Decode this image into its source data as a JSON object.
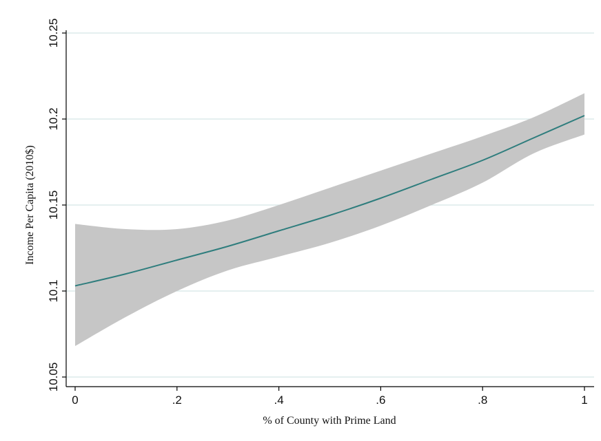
{
  "chart_data": {
    "type": "line",
    "xlabel": "% of County with Prime Land",
    "ylabel": "Income Per Capita (2010$)",
    "xlim": [
      0,
      1
    ],
    "ylim": [
      10.05,
      10.25
    ],
    "x_ticks": [
      {
        "value": 0,
        "label": "0"
      },
      {
        "value": 0.2,
        "label": ".2"
      },
      {
        "value": 0.4,
        "label": ".4"
      },
      {
        "value": 0.6,
        "label": ".6"
      },
      {
        "value": 0.8,
        "label": ".8"
      },
      {
        "value": 1,
        "label": "1"
      }
    ],
    "y_ticks": [
      {
        "value": 10.05,
        "label": "10.05"
      },
      {
        "value": 10.1,
        "label": "10.1"
      },
      {
        "value": 10.15,
        "label": "10.15"
      },
      {
        "value": 10.2,
        "label": "10.2"
      },
      {
        "value": 10.25,
        "label": "10.25"
      }
    ],
    "grid": "horizontal",
    "series": [
      {
        "kind": "fit",
        "color": "#2e7d7d",
        "x": [
          0,
          0.1,
          0.2,
          0.3,
          0.4,
          0.5,
          0.6,
          0.7,
          0.8,
          0.9,
          1.0
        ],
        "y": [
          10.103,
          10.11,
          10.118,
          10.126,
          10.135,
          10.144,
          10.154,
          10.165,
          10.176,
          10.189,
          10.202
        ]
      },
      {
        "kind": "confidence-band",
        "color": "#c6c6c6",
        "x": [
          0,
          0.1,
          0.2,
          0.3,
          0.4,
          0.5,
          0.6,
          0.7,
          0.8,
          0.9,
          1.0
        ],
        "upper": [
          10.139,
          10.136,
          10.136,
          10.141,
          10.15,
          10.16,
          10.17,
          10.18,
          10.19,
          10.201,
          10.215
        ],
        "lower": [
          10.068,
          10.085,
          10.1,
          10.112,
          10.12,
          10.128,
          10.138,
          10.15,
          10.163,
          10.18,
          10.191
        ]
      }
    ]
  }
}
